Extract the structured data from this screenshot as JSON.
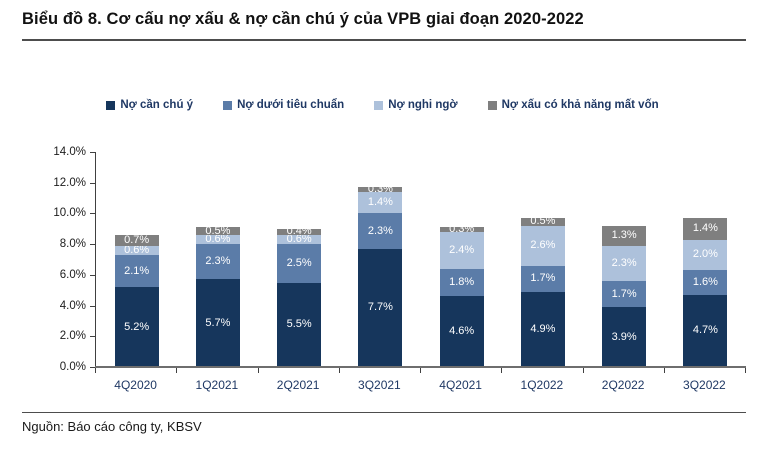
{
  "title": "Biểu đồ 8. Cơ cấu nợ xấu & nợ cần chú ý của VPB giai đoạn 2020-2022",
  "source": "Nguồn: Báo cáo công ty, KBSV",
  "chart_data": {
    "type": "bar",
    "stacked": true,
    "title": "Biểu đồ 8. Cơ cấu nợ xấu & nợ cần chú ý của VPB giai đoạn 2020-2022",
    "categories": [
      "4Q2020",
      "1Q2021",
      "2Q2021",
      "3Q2021",
      "4Q2021",
      "1Q2022",
      "2Q2022",
      "3Q2022"
    ],
    "series": [
      {
        "name": "Nợ cần chú ý",
        "color": "#16365C",
        "values": [
          5.2,
          5.7,
          5.5,
          7.7,
          4.6,
          4.9,
          3.9,
          4.7
        ]
      },
      {
        "name": "Nợ dưới tiêu chuẩn",
        "color": "#5B7CA8",
        "values": [
          2.1,
          2.3,
          2.5,
          2.3,
          1.8,
          1.7,
          1.7,
          1.6
        ]
      },
      {
        "name": "Nợ nghi ngờ",
        "color": "#ADC1DB",
        "values": [
          0.6,
          0.6,
          0.6,
          1.4,
          2.4,
          2.6,
          2.3,
          2.0
        ]
      },
      {
        "name": "Nợ xấu có khả năng mất vốn",
        "color": "#7F7F7F",
        "values": [
          0.7,
          0.5,
          0.4,
          0.3,
          0.3,
          0.5,
          1.3,
          1.4
        ]
      }
    ],
    "xlabel": "",
    "ylabel": "",
    "ylim": [
      0,
      14
    ],
    "ytick_step": 2,
    "yticks": [
      "0.0%",
      "2.0%",
      "4.0%",
      "6.0%",
      "8.0%",
      "10.0%",
      "12.0%",
      "14.0%"
    ],
    "grid": false,
    "legend_position": "top",
    "data_labels": true,
    "label_suffix": "%"
  }
}
